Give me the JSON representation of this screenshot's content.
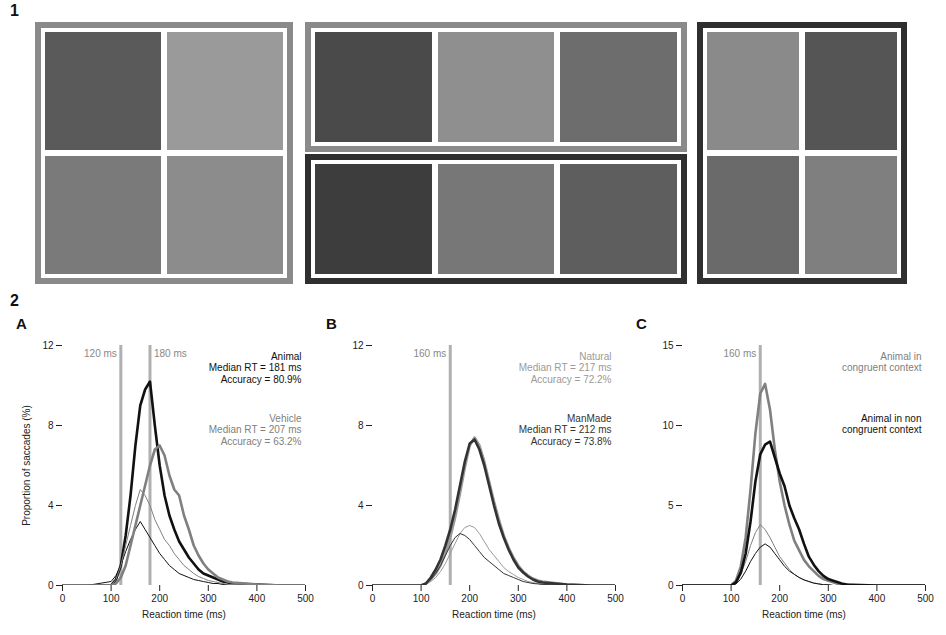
{
  "section_labels": [
    "1",
    "2"
  ],
  "chart_data": [
    {
      "type": "line",
      "panel": "A",
      "x": [
        0,
        50,
        100,
        110,
        120,
        130,
        140,
        150,
        160,
        170,
        180,
        190,
        200,
        210,
        220,
        230,
        240,
        250,
        260,
        270,
        280,
        290,
        300,
        310,
        320,
        330,
        340,
        350,
        400,
        450,
        500
      ],
      "xlim": [
        0,
        500
      ],
      "xticks": [
        0,
        100,
        200,
        300,
        400,
        500
      ],
      "ylim": [
        0,
        12
      ],
      "yticks": [
        0,
        4,
        8,
        12
      ],
      "xlabel": "Reaction time (ms)",
      "ylabel": "Proportion of saccades (%)",
      "reference_lines": [
        {
          "value": 120,
          "label": "120 ms"
        },
        {
          "value": 180,
          "label": "180 ms"
        }
      ],
      "series": [
        {
          "color": "#111111",
          "annotation": [
            "Animal",
            "Median RT = 181 ms",
            "Accuracy = 80.9%"
          ],
          "values": [
            0,
            0,
            0,
            0.3,
            1,
            2.5,
            4.5,
            7,
            9,
            9.8,
            10.2,
            8,
            6,
            4.5,
            3.5,
            2.8,
            2.2,
            1.8,
            1.4,
            1.1,
            0.8,
            0.6,
            0.5,
            0.4,
            0.3,
            0.2,
            0.15,
            0.1,
            0.05,
            0,
            0
          ],
          "incorrect_values": [
            0,
            0,
            0.2,
            0.5,
            1,
            1.7,
            2.3,
            2.8,
            3.2,
            2.8,
            2.4,
            2,
            1.6,
            1.3,
            1,
            0.8,
            0.6,
            0.5,
            0.4,
            0.3,
            0.25,
            0.2,
            0.15,
            0.1,
            0.1,
            0.05,
            0.05,
            0,
            0,
            0,
            0
          ]
        },
        {
          "color": "#808080",
          "annotation": [
            "Vehicle",
            "Median RT = 207 ms",
            "Accuracy = 63.2%"
          ],
          "values": [
            0,
            0,
            0,
            0.1,
            0.4,
            1,
            2,
            3,
            4,
            5,
            6,
            6.8,
            7,
            6.5,
            5.5,
            4.8,
            4.5,
            3.5,
            2.8,
            2,
            1.5,
            1.1,
            0.8,
            0.6,
            0.4,
            0.3,
            0.2,
            0.15,
            0.05,
            0,
            0
          ],
          "incorrect_values": [
            0,
            0,
            0,
            0.3,
            1,
            2,
            3,
            4,
            4.8,
            4.5,
            4,
            3.3,
            2.8,
            2.3,
            2,
            1.6,
            1.3,
            1,
            0.8,
            0.6,
            0.45,
            0.35,
            0.25,
            0.2,
            0.15,
            0.1,
            0.05,
            0.05,
            0,
            0,
            0
          ]
        }
      ]
    },
    {
      "type": "line",
      "panel": "B",
      "x": [
        0,
        50,
        100,
        110,
        120,
        130,
        140,
        150,
        160,
        170,
        180,
        190,
        200,
        210,
        220,
        230,
        240,
        250,
        260,
        270,
        280,
        290,
        300,
        310,
        320,
        330,
        340,
        350,
        400,
        450,
        500
      ],
      "xlim": [
        0,
        500
      ],
      "xticks": [
        0,
        100,
        200,
        300,
        400,
        500
      ],
      "ylim": [
        0,
        12
      ],
      "yticks": [
        0,
        4,
        8,
        12
      ],
      "xlabel": "Reaction time (ms)",
      "reference_lines": [
        {
          "value": 160,
          "label": "160 ms"
        }
      ],
      "series": [
        {
          "color": "#9a9a9a",
          "annotation": [
            "Natural",
            "Median RT = 217 ms",
            "Accuracy = 72.2%"
          ],
          "values": [
            0,
            0,
            0,
            0.1,
            0.3,
            0.6,
            1,
            1.6,
            2.4,
            3.4,
            4.6,
            5.9,
            7,
            7.4,
            7,
            6.2,
            5.2,
            4.2,
            3.3,
            2.5,
            1.9,
            1.4,
            1,
            0.7,
            0.5,
            0.35,
            0.25,
            0.2,
            0.05,
            0,
            0
          ],
          "incorrect_values": [
            0,
            0,
            0,
            0.05,
            0.2,
            0.4,
            0.7,
            1.1,
            1.6,
            2.1,
            2.6,
            2.9,
            3,
            2.9,
            2.6,
            2.2,
            1.8,
            1.5,
            1.2,
            0.9,
            0.7,
            0.55,
            0.4,
            0.3,
            0.2,
            0.15,
            0.1,
            0.08,
            0.02,
            0,
            0
          ]
        },
        {
          "color": "#333333",
          "annotation": [
            "ManMade",
            "Median RT = 212 ms",
            "Accuracy = 73.8%"
          ],
          "values": [
            0,
            0,
            0,
            0.1,
            0.4,
            0.8,
            1.3,
            2,
            2.8,
            3.8,
            5,
            6.2,
            7.1,
            7.3,
            6.8,
            6,
            5,
            4,
            3.1,
            2.4,
            1.8,
            1.3,
            0.9,
            0.65,
            0.45,
            0.3,
            0.2,
            0.15,
            0.05,
            0,
            0
          ],
          "incorrect_values": [
            0,
            0,
            0,
            0.1,
            0.3,
            0.6,
            1,
            1.5,
            2,
            2.4,
            2.6,
            2.5,
            2.3,
            2,
            1.7,
            1.4,
            1.2,
            1,
            0.8,
            0.6,
            0.5,
            0.4,
            0.3,
            0.2,
            0.15,
            0.1,
            0.08,
            0.05,
            0.02,
            0,
            0
          ]
        }
      ]
    },
    {
      "type": "line",
      "panel": "C",
      "x": [
        0,
        50,
        100,
        110,
        120,
        130,
        140,
        150,
        160,
        170,
        180,
        190,
        200,
        210,
        220,
        230,
        240,
        250,
        260,
        270,
        280,
        290,
        300,
        310,
        320,
        330,
        340,
        350,
        400,
        450,
        500
      ],
      "xlim": [
        0,
        500
      ],
      "xticks": [
        0,
        100,
        200,
        300,
        400,
        500
      ],
      "ylim": [
        0,
        15
      ],
      "yticks": [
        0,
        5,
        10,
        15
      ],
      "xlabel": "Reaction time (ms)",
      "reference_lines": [
        {
          "value": 160,
          "label": "160 ms"
        }
      ],
      "series": [
        {
          "color": "#808080",
          "annotation": [
            "Animal in",
            "congruent context"
          ],
          "values": [
            0,
            0,
            0,
            0.3,
            1.2,
            3,
            6,
            9.5,
            12,
            12.6,
            11,
            8.5,
            6.5,
            5,
            3.8,
            2.8,
            2.2,
            1.6,
            1.2,
            0.9,
            0.6,
            0.4,
            0.3,
            0.2,
            0.1,
            0.05,
            0.05,
            0,
            0,
            0,
            0
          ],
          "incorrect_values": [
            0,
            0,
            0,
            0.2,
            0.7,
            1.5,
            2.5,
            3.3,
            3.8,
            3.5,
            3,
            2.4,
            1.8,
            1.4,
            1,
            0.7,
            0.5,
            0.35,
            0.25,
            0.15,
            0.1,
            0.05,
            0.05,
            0,
            0,
            0,
            0,
            0,
            0,
            0,
            0
          ]
        },
        {
          "color": "#111111",
          "annotation": [
            "Animal in non",
            "congruent context"
          ],
          "values": [
            0,
            0,
            0,
            0.2,
            0.8,
            2,
            4,
            6.5,
            8.2,
            8.8,
            9,
            8,
            7,
            6.2,
            5,
            4.2,
            3.5,
            2.6,
            1.8,
            1.3,
            0.9,
            0.6,
            0.4,
            0.3,
            0.2,
            0.1,
            0.05,
            0.05,
            0,
            0,
            0
          ],
          "incorrect_values": [
            0,
            0,
            0,
            0.1,
            0.4,
            0.9,
            1.5,
            2,
            2.4,
            2.6,
            2.4,
            2,
            1.6,
            1.2,
            0.9,
            0.7,
            0.5,
            0.35,
            0.25,
            0.15,
            0.1,
            0.05,
            0.05,
            0,
            0,
            0,
            0,
            0,
            0,
            0,
            0
          ]
        }
      ]
    }
  ]
}
